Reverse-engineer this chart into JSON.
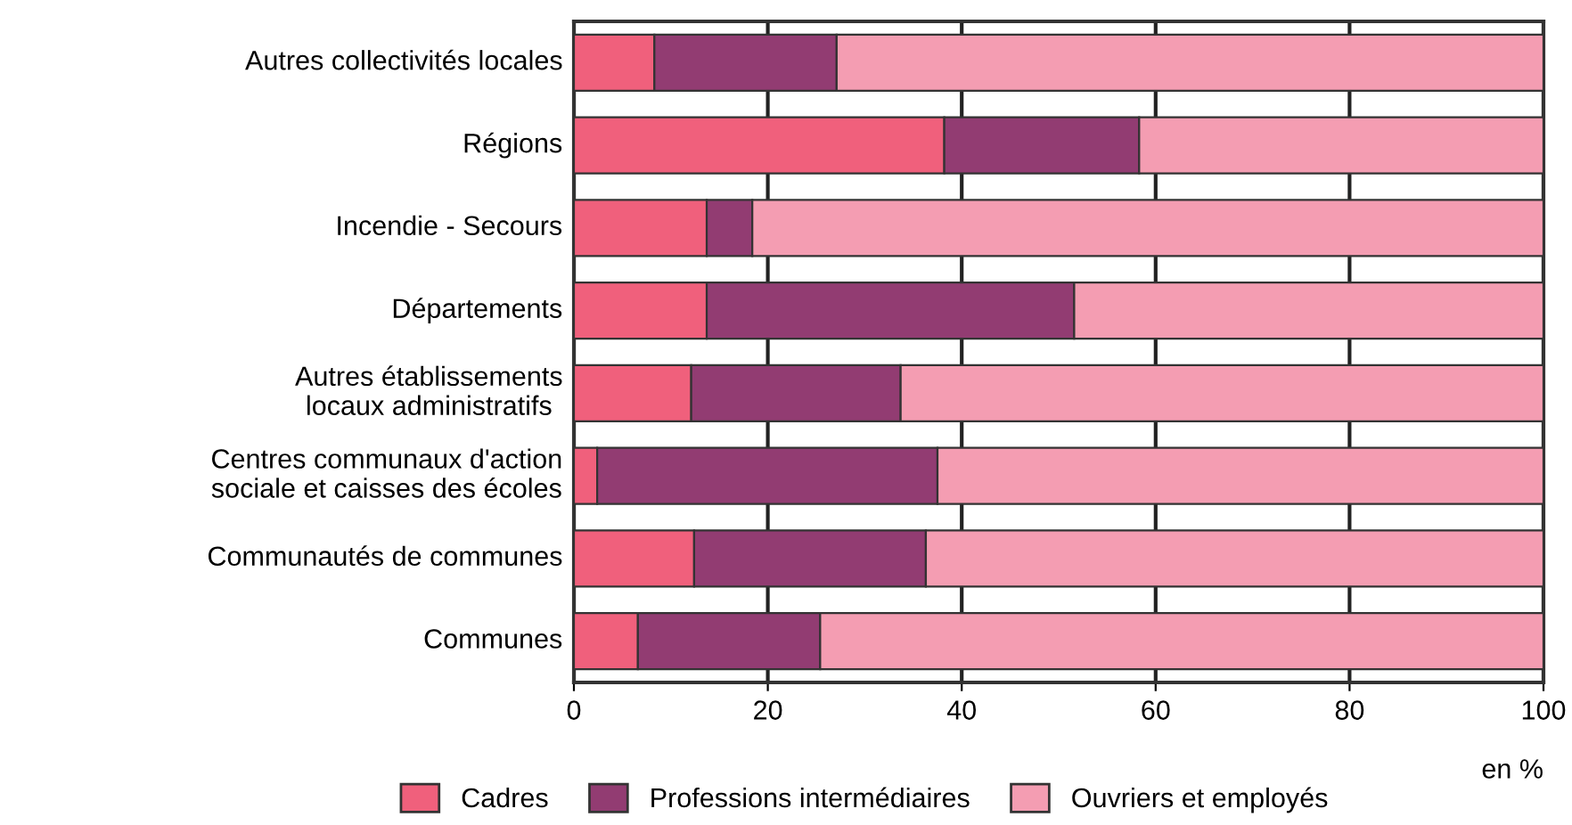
{
  "chart_data": {
    "type": "bar",
    "orientation": "horizontal",
    "stacked": true,
    "categories": [
      "Autres collectivités locales",
      "Régions",
      "Incendie - Secours",
      "Départements",
      "Autres établissements locaux administratifs",
      "Centres communaux d'action sociale et caisses des écoles",
      "Communautés de communes",
      "Communes"
    ],
    "series": [
      {
        "name": "Cadres",
        "color": "#f0607c",
        "values": [
          8.3,
          38.2,
          13.7,
          13.7,
          12.1,
          2.4,
          12.4,
          6.6
        ]
      },
      {
        "name": "Professions intermédiaires",
        "color": "#923c72",
        "values": [
          18.8,
          20.1,
          4.7,
          37.9,
          21.6,
          35.1,
          23.9,
          18.8
        ]
      },
      {
        "name": "Ouvriers et employés",
        "color": "#f49db2",
        "values": [
          72.9,
          41.7,
          81.6,
          48.4,
          66.3,
          62.5,
          63.7,
          74.6
        ]
      }
    ],
    "xlim": [
      0,
      100
    ],
    "xticks": [
      0,
      20,
      40,
      60,
      80,
      100
    ],
    "xlabel": "en %",
    "grid": "x",
    "legend": "bottom"
  }
}
